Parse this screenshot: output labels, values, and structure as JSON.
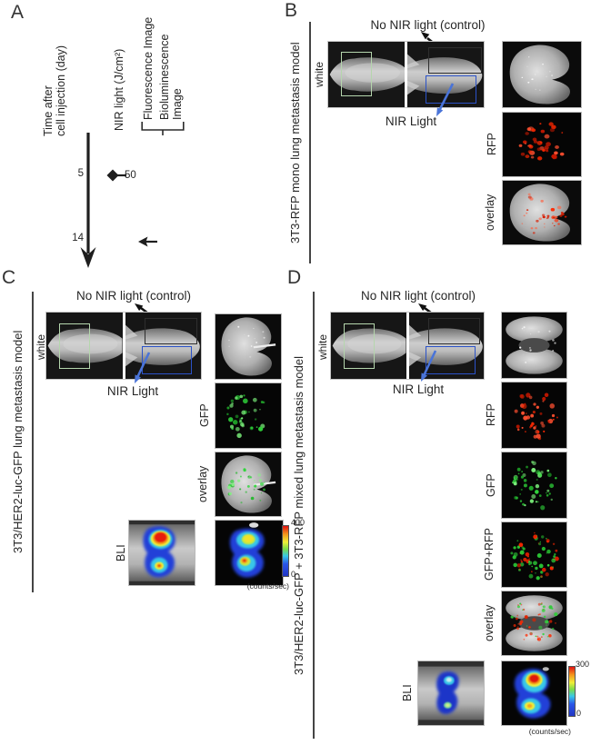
{
  "panelA": {
    "label": "A",
    "time_axis_line1": "Time after",
    "time_axis_line2": "cell injection (day)",
    "nir_axis": "NIR light (J/cm²)",
    "fluorescence_label": "Fluorescence Image",
    "bioluminescence_line1": "Bioluminescence",
    "bioluminescence_line2": "Image",
    "timepoint_day5": "5",
    "timepoint_day14": "14",
    "nir_dose": "50"
  },
  "panelB": {
    "label": "B",
    "model_label": "3T3-RFP mono lung metastasis model",
    "no_nir_label": "No NIR light (control)",
    "nir_label": "NIR Light",
    "white_label": "white",
    "row_rfp_label": "RFP",
    "row_overlay_label": "overlay"
  },
  "panelC": {
    "label": "C",
    "model_label": "3T3/HER2-luc-GFP lung metastasis model",
    "no_nir_label": "No NIR light (control)",
    "nir_label": "NIR Light",
    "white_label": "white",
    "row_gfp_label": "GFP",
    "row_overlay_label": "overlay",
    "row_bli_label": "BLI",
    "colorbar_max": "400",
    "colorbar_min": "0",
    "colorbar_unit": "(counts/sec)"
  },
  "panelD": {
    "label": "D",
    "model_label": "3T3/HER2-luc-GFP + 3T3-RFP mixed lung metastasis model",
    "no_nir_label": "No NIR light (control)",
    "nir_label": "NIR Light",
    "white_label": "white",
    "row_rfp_label": "RFP",
    "row_gfp_label": "GFP",
    "row_gfp_rfp_label": "GFP+RFP",
    "row_overlay_label": "overlay",
    "row_bli_label": "BLI",
    "colorbar_max": "300",
    "colorbar_min": "0",
    "colorbar_unit": "(counts/sec)"
  },
  "colors": {
    "green_roi_box": "#b5d6ad",
    "black_roi_box": "#2e2e2e",
    "blue_roi_box": "#2b52c8",
    "nir_arrow_blue": "#4a74d8",
    "rfp_red": "#e82810",
    "gfp_green": "#2fd43a"
  }
}
